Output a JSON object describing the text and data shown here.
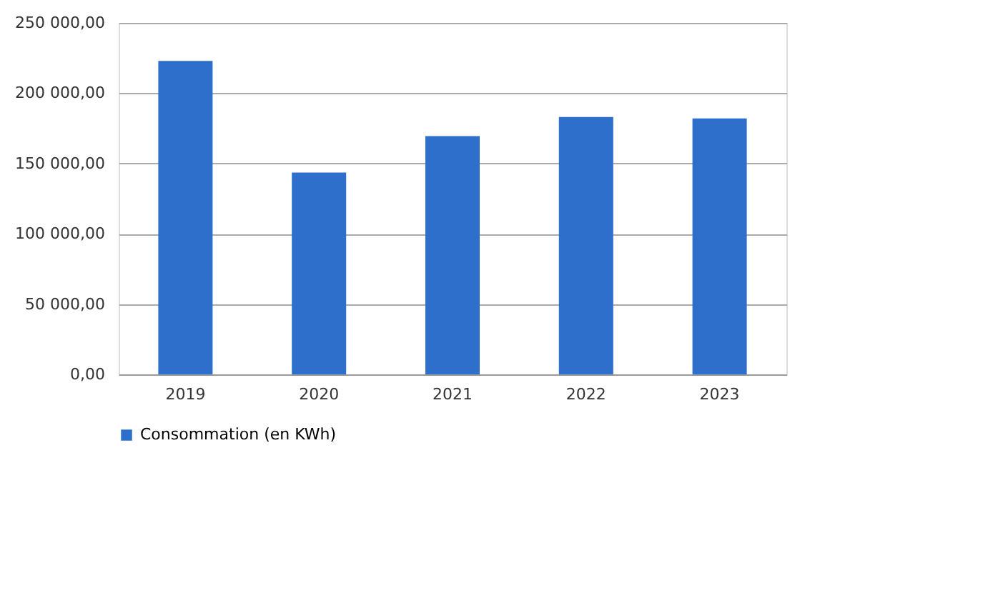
{
  "chart_data": {
    "type": "bar",
    "categories": [
      "2019",
      "2020",
      "2021",
      "2022",
      "2023"
    ],
    "series": [
      {
        "name": "Consommation (en KWh)",
        "color": "#2e6fcc",
        "values": [
          223000,
          143500,
          169500,
          183000,
          182000
        ]
      }
    ],
    "ylim": [
      0,
      250000
    ],
    "yticks": [
      {
        "value": 0,
        "label": "0,00"
      },
      {
        "value": 50000,
        "label": "50 000,00"
      },
      {
        "value": 100000,
        "label": "100 000,00"
      },
      {
        "value": 150000,
        "label": "150 000,00"
      },
      {
        "value": 200000,
        "label": "200 000,00"
      },
      {
        "value": 250000,
        "label": "250 000,00"
      }
    ],
    "grid": "y",
    "legend": "bottom"
  }
}
